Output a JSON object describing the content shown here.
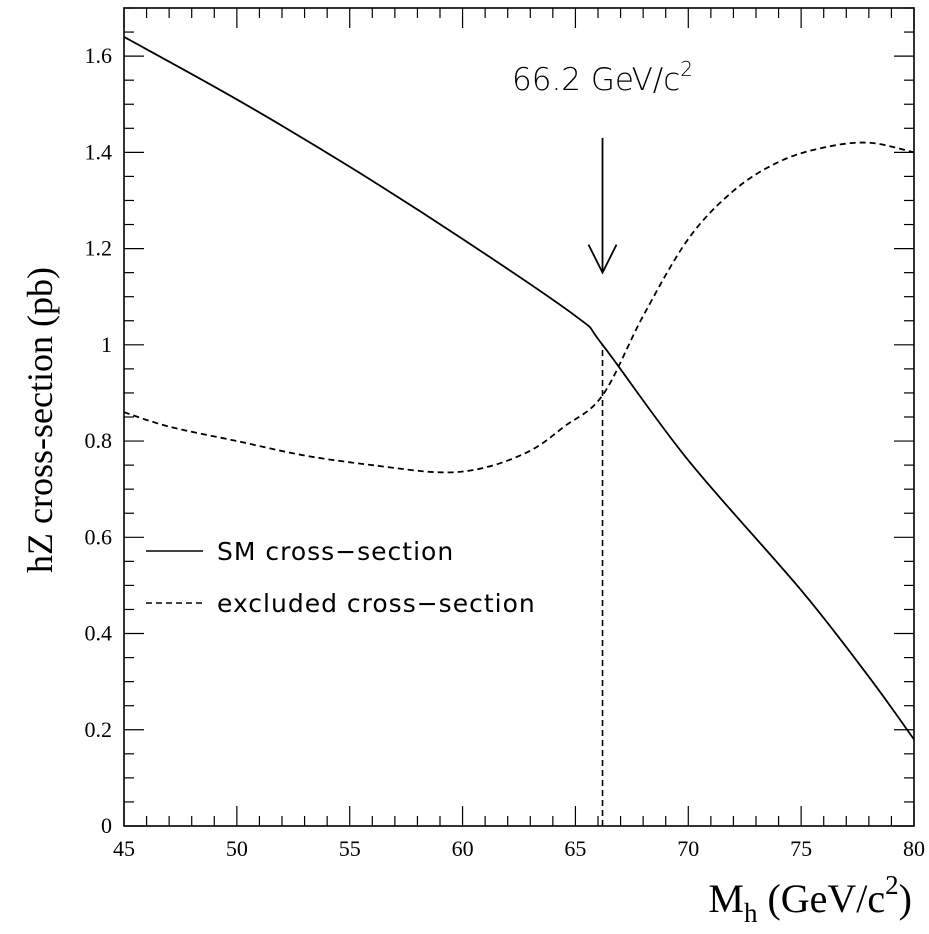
{
  "chart_data": {
    "type": "line",
    "title": "",
    "xlabel": {
      "main": "M",
      "sub": "h",
      "rest": " (GeV/c",
      "sup": "2",
      "close": ")"
    },
    "ylabel": "hZ cross-section (pb)",
    "xlim": [
      45,
      80
    ],
    "ylim": [
      0,
      1.7
    ],
    "x_ticks": [
      45,
      50,
      55,
      60,
      65,
      70,
      75,
      80
    ],
    "x_tick_labels": [
      "45",
      "50",
      "55",
      "60",
      "65",
      "70",
      "75",
      "80"
    ],
    "y_ticks": [
      0,
      0.2,
      0.4,
      0.6,
      0.8,
      1.0,
      1.2,
      1.4,
      1.6
    ],
    "y_tick_labels": [
      "0",
      "0.2",
      "0.4",
      "0.6",
      "0.8",
      "1",
      "1.2",
      "1.4",
      "1.6"
    ],
    "grid": false,
    "legend_position": "left",
    "series": [
      {
        "name": "SM cross−section",
        "style": "solid",
        "x": [
          45,
          50,
          55,
          60,
          65,
          66.2,
          70,
          75,
          78,
          80
        ],
        "y": [
          1.64,
          1.51,
          1.37,
          1.22,
          1.06,
          1.0,
          0.76,
          0.49,
          0.31,
          0.18
        ]
      },
      {
        "name": "excluded cross−section",
        "style": "dashed",
        "x": [
          45,
          47,
          50,
          53,
          56,
          59,
          61,
          63,
          64.5,
          66.2,
          68,
          70,
          72,
          74,
          76,
          78,
          80
        ],
        "y": [
          0.86,
          0.83,
          0.8,
          0.77,
          0.75,
          0.735,
          0.745,
          0.78,
          0.83,
          0.895,
          1.06,
          1.22,
          1.32,
          1.38,
          1.41,
          1.42,
          1.4
        ]
      }
    ],
    "annotations": {
      "mass_line_x": 66.2,
      "mass_line_ymax": 1.0,
      "arrow_x": 66.2,
      "arrow_y_top": 1.43,
      "arrow_y_tip": 1.15,
      "label_main": "66.2 GeV/c",
      "label_sup": "2",
      "label_x": 66.2,
      "label_y": 1.53
    },
    "colors": {
      "line": "#000000",
      "background": "#ffffff"
    }
  }
}
